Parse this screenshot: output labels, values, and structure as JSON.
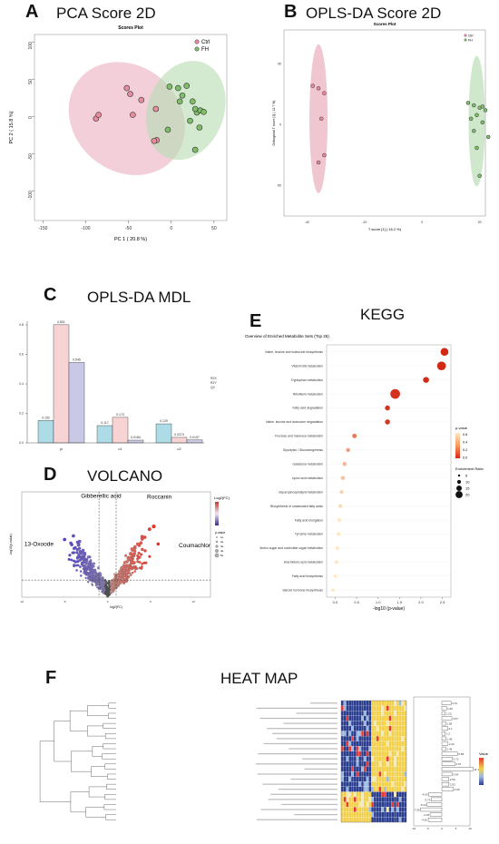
{
  "panels": {
    "A": {
      "letter": "A",
      "title": "PCA Score 2D",
      "plot_title": "Scores Plot",
      "xlabel": "PC 1 ( 20.8 %)",
      "ylabel": "PC 2 ( 15.8 %)",
      "legend": [
        "Ctrl",
        "FH"
      ]
    },
    "B": {
      "letter": "B",
      "title": "OPLS-DA Score 2D",
      "plot_title": "Scores Plot",
      "xlabel": "T score [1] ( 16.2 %)",
      "ylabel": "Orthogonal T score [1] ( 12.7 %)",
      "legend": [
        "Ctrl",
        "FH"
      ]
    },
    "C": {
      "letter": "C",
      "title": "OPLS-DA MDL",
      "legend": [
        "R2X",
        "R2Y",
        "Q2"
      ]
    },
    "D": {
      "letter": "D",
      "title": "VOLCANO",
      "xlabel": "log2(FC)",
      "ylabel": "-log10(p.value)",
      "labels": [
        "Gibberellic acid",
        "Roccanin",
        "13-Oxoode",
        "Coumachlor"
      ],
      "legend_title_fc": "Log2(FC)",
      "legend_title_p": "p.value",
      "p_ticks": [
        "1e",
        "2e",
        "3e",
        "4e",
        "5e"
      ]
    },
    "E": {
      "letter": "E",
      "title": "KEGG",
      "plot_title": "Overview of Enriched Metabolite Sets (Top 25)",
      "xlabel": "-log10 (p-value)",
      "legend_p_title": "p-value",
      "legend_p_ticks": [
        "0.6",
        "0.4",
        "0.2",
        "0.0"
      ],
      "legend_size_title": "Enrichment Ratio",
      "legend_size_ticks": [
        "5",
        "10",
        "15",
        "20"
      ]
    },
    "F": {
      "letter": "F",
      "title": "HEAT MAP",
      "legend_title": "Value"
    }
  },
  "chart_data": [
    {
      "type": "scatter",
      "title": "Scores Plot",
      "xlabel": "PC 1 ( 20.8 %)",
      "ylabel": "PC 2 ( 15.8 %)",
      "xlim": [
        -160,
        65
      ],
      "ylim": [
        -140,
        110
      ],
      "xticks": [
        -150,
        -100,
        -50,
        0,
        50
      ],
      "yticks": [
        100,
        50,
        0,
        -50,
        -100
      ],
      "series": [
        {
          "name": "Ctrl",
          "color": "#e98c9e",
          "x": [
            -52,
            -48,
            -45,
            -88,
            -85,
            -35,
            -18,
            -17,
            -20
          ],
          "y": [
            38,
            30,
            2,
            -3,
            2,
            22,
            10,
            -32,
            -33
          ]
        },
        {
          "name": "FH",
          "color": "#7fbf6a",
          "x": [
            -2,
            8,
            13,
            18,
            10,
            25,
            30,
            34,
            28,
            22,
            38,
            33,
            -4,
            28
          ],
          "y": [
            40,
            38,
            28,
            41,
            20,
            20,
            5,
            8,
            10,
            -6,
            6,
            -15,
            -18,
            -45
          ]
        }
      ]
    },
    {
      "type": "scatter",
      "title": "Scores Plot",
      "xlabel": "T score [1] ( 16.2 %)",
      "ylabel": "Orthogonal T score [1] ( 12.7 %)",
      "xlim": [
        -48,
        22
      ],
      "ylim": [
        -75,
        78
      ],
      "xticks": [
        -40,
        -20,
        0,
        20
      ],
      "yticks": [
        50,
        0,
        -50
      ],
      "series": [
        {
          "name": "Ctrl",
          "color": "#e98c9e",
          "x": [
            -38,
            -36,
            -34,
            -35,
            -34,
            -36
          ],
          "y": [
            32,
            30,
            26,
            5,
            -25,
            -31
          ]
        },
        {
          "name": "FH",
          "color": "#7fbf6a",
          "x": [
            16,
            18,
            20,
            21,
            22,
            19,
            17,
            21,
            18,
            23,
            19,
            20
          ],
          "y": [
            18,
            16,
            14,
            15,
            12,
            8,
            5,
            2,
            -5,
            -10,
            -19,
            -42
          ]
        }
      ]
    },
    {
      "type": "bar",
      "categories": [
        "pl",
        "o1",
        "o2"
      ],
      "ylim": [
        0,
        0.8
      ],
      "yticks": [
        0.8,
        0.6,
        0.4,
        0.2,
        0.0
      ],
      "series": [
        {
          "name": "R2X",
          "color": "#aedce6",
          "values": [
            0.152,
            0.117,
            0.129
          ]
        },
        {
          "name": "R2Y",
          "color": "#f7d3d3",
          "values": [
            0.801,
            0.173,
            0.0373
          ]
        },
        {
          "name": "Q2",
          "color": "#c9c9e6",
          "values": [
            0.545,
            0.0184,
            0.0197
          ]
        }
      ]
    },
    {
      "type": "bar",
      "orientation": "horizontal",
      "title": "Overview of Enriched Metabolite Sets (Top 25)",
      "xlabel": "-log10 (p-value)",
      "xlim": [
        -0.2,
        2.7
      ],
      "xticks": [
        0.0,
        0.5,
        1.0,
        1.5,
        2.0,
        2.5
      ],
      "categories": [
        "Valine, leucine and isoleucine biosynthesis",
        "Vitamin B6 metabolism",
        "Tryptophan metabolism",
        "Riboflavin metabolism",
        "Fatty acid degradation",
        "Valine, leucine and isoleucine degradation",
        "Fructose and mannose metabolism",
        "Glycolysis / Gluconeogenesis",
        "Galactose metabolism",
        "Lipoic acid metabolism",
        "Glycerophospholipid metabolism",
        "Biosynthesis of unsaturated fatty acids",
        "Fatty acid elongation",
        "Tyrosine metabolism",
        "Amino sugar and nucleotide sugar metabolism",
        "Arachidonic acid metabolism",
        "Fatty acid biosynthesis",
        "Steroid hormone biosynthesis"
      ],
      "values": [
        2.55,
        2.48,
        2.12,
        1.4,
        1.22,
        1.22,
        0.45,
        0.3,
        0.22,
        0.18,
        0.15,
        0.12,
        0.1,
        0.08,
        0.05,
        0.03,
        0.0,
        -0.05
      ],
      "enrichment": [
        12,
        14,
        8,
        16,
        6,
        6,
        5,
        4,
        4,
        4,
        3,
        3,
        3,
        3,
        3,
        3,
        2,
        2
      ],
      "p_value": [
        0.003,
        0.003,
        0.008,
        0.04,
        0.06,
        0.06,
        0.35,
        0.5,
        0.6,
        0.65,
        0.7,
        0.75,
        0.8,
        0.83,
        0.9,
        0.93,
        1.0,
        1.0
      ]
    },
    {
      "type": "scatter",
      "title": "",
      "xlabel": "log2(FC)",
      "ylabel": "-log10(p.value)",
      "xlim": [
        -10,
        12
      ],
      "ylim": [
        0,
        8
      ],
      "xticks": [
        -10,
        -5,
        0,
        5,
        10
      ],
      "labels": [
        "Gibberellic acid",
        "Roccanin",
        "13-Oxoode",
        "Coumachlor"
      ]
    },
    {
      "type": "bar",
      "orientation": "horizontal",
      "xlim": [
        -10,
        10
      ],
      "xticks": [
        -10,
        -5,
        0,
        5,
        10
      ],
      "values": [
        3.31,
        1.66,
        1.22,
        3.57,
        1.38,
        2.1,
        1.2,
        1.45,
        2.22,
        1.45,
        5.58,
        3.72,
        4.67,
        11.1,
        3.64,
        2.53,
        2.53,
        4.09,
        -4.63,
        -3.75,
        -5.24,
        -7.56,
        -4.18,
        -4.81
      ]
    }
  ]
}
